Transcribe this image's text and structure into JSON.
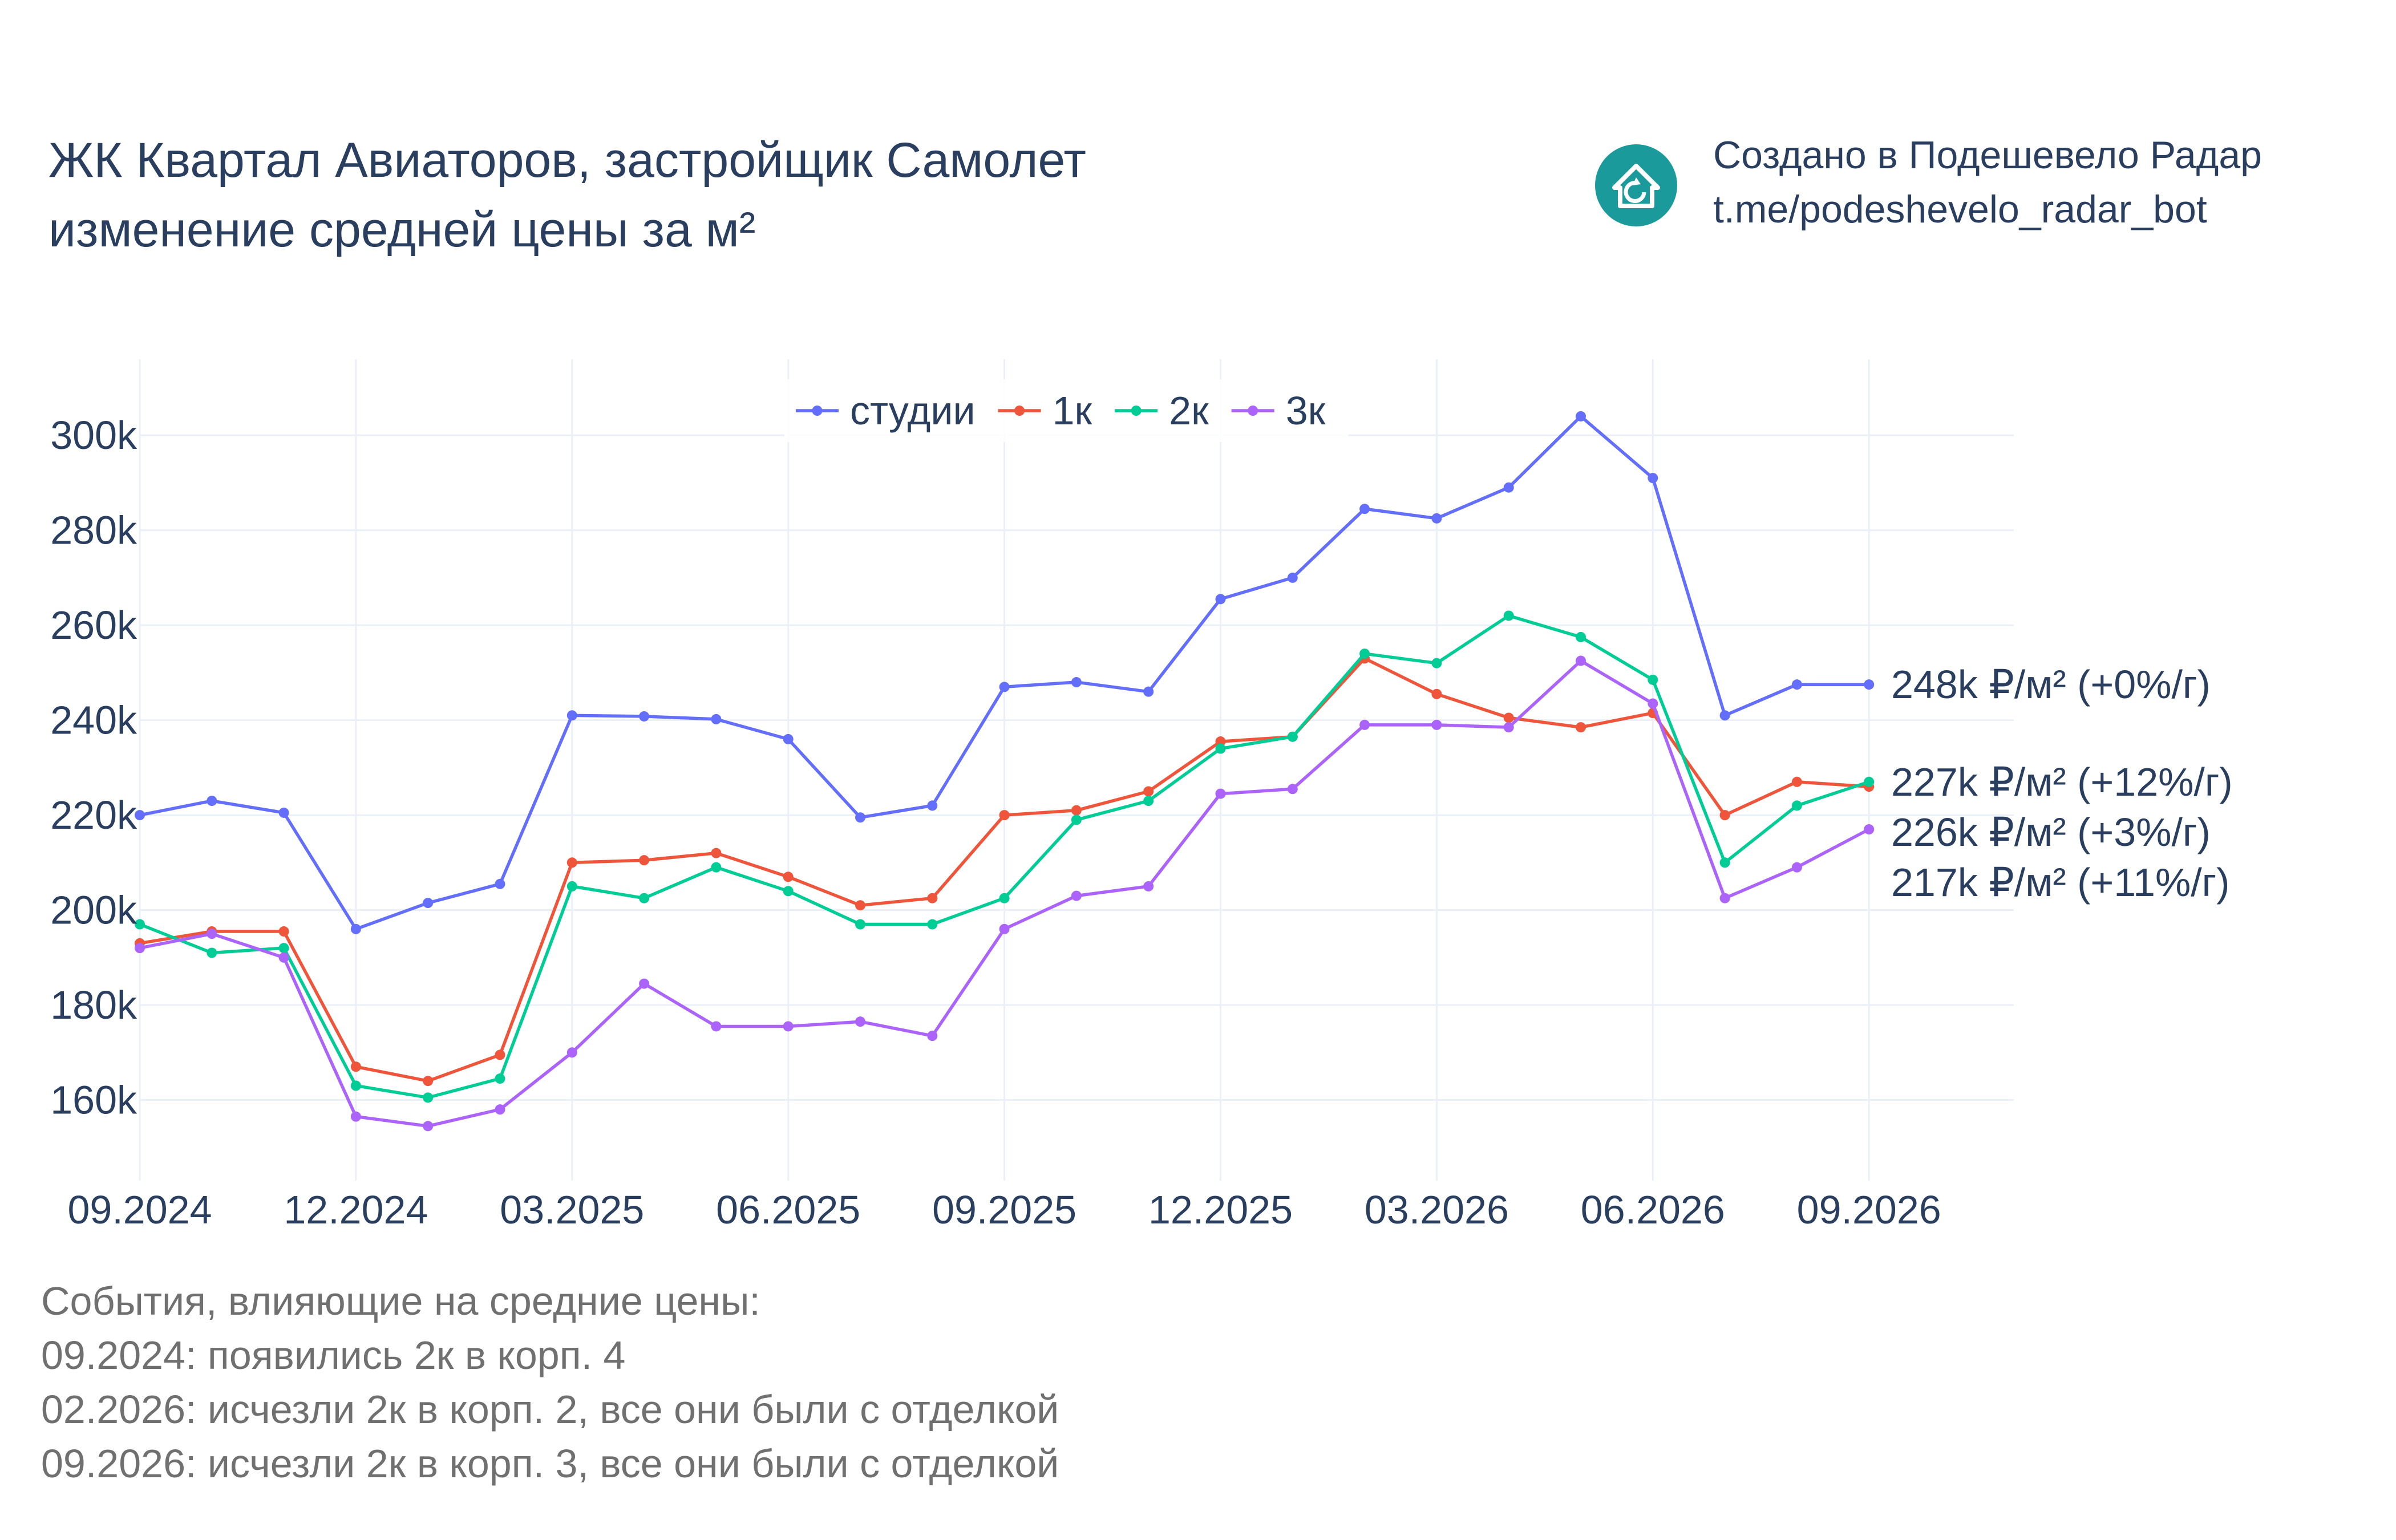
{
  "header": {
    "title_line1": "ЖК Квартал Авиаторов, застройщик Самолет",
    "title_line2": "изменение средней цены за м²"
  },
  "credit": {
    "logo_icon": "house-refresh-icon",
    "logo_color": "#1a9a9a",
    "line1": "Создано в Подешевело Радар",
    "line2": "t.me/podeshevelo_radar_bot"
  },
  "events": {
    "heading": "События, влияющие на средние цены:",
    "items": [
      "09.2024: появились 2к в корп. 4",
      "02.2026: исчезли 2к в корп. 2, все они были с отделкой",
      "09.2026: исчезли 2к в корп. 3, все они были с отделкой"
    ]
  },
  "chart_data": {
    "type": "line",
    "x": [
      "2024-09",
      "2024-10",
      "2024-11",
      "2024-12",
      "2025-01",
      "2025-02",
      "2025-03",
      "2025-04",
      "2025-05",
      "2025-06",
      "2025-07",
      "2025-08",
      "2025-09",
      "2025-10",
      "2025-11",
      "2025-12",
      "2026-01",
      "2026-02",
      "2026-03",
      "2026-04",
      "2026-05",
      "2026-06",
      "2026-07",
      "2026-08",
      "2026-09"
    ],
    "x_ticks": [
      "09.2024",
      "12.2024",
      "03.2025",
      "06.2025",
      "09.2025",
      "12.2025",
      "03.2026",
      "06.2026",
      "09.2026"
    ],
    "x_tick_dates": [
      "2024-09",
      "2024-12",
      "2025-03",
      "2025-06",
      "2025-09",
      "2025-12",
      "2026-03",
      "2026-06",
      "2026-09"
    ],
    "y_ticks": [
      160000,
      180000,
      200000,
      220000,
      240000,
      260000,
      280000,
      300000
    ],
    "y_tick_labels": [
      "160k",
      "180k",
      "200k",
      "220k",
      "240k",
      "260k",
      "280k",
      "300k"
    ],
    "ylim": [
      143000,
      316000
    ],
    "grid": true,
    "legend_position": "top-center",
    "series": [
      {
        "name": "студии",
        "color": "#636efa",
        "values": [
          220000,
          223000,
          220500,
          196000,
          201500,
          205500,
          241000,
          240800,
          240200,
          236000,
          219500,
          222000,
          247000,
          248000,
          246000,
          265500,
          270000,
          284500,
          282500,
          289000,
          304000,
          291000,
          241000,
          247500,
          247500
        ],
        "end_label": "248k ₽/м² (+0%/г)"
      },
      {
        "name": "1к",
        "color": "#ef553b",
        "values": [
          193000,
          195500,
          195500,
          167000,
          164000,
          169500,
          210000,
          210500,
          212000,
          207000,
          201000,
          202500,
          220000,
          221000,
          225000,
          235500,
          236500,
          253000,
          245500,
          240500,
          238500,
          241500,
          220000,
          227000,
          226000
        ],
        "end_label": "226k ₽/м² (+3%/г)"
      },
      {
        "name": "2к",
        "color": "#00cc96",
        "values": [
          197000,
          191000,
          192000,
          163000,
          160500,
          164500,
          205000,
          202500,
          209000,
          204000,
          197000,
          197000,
          202500,
          219000,
          223000,
          234000,
          236500,
          254000,
          252000,
          262000,
          257500,
          248500,
          210000,
          222000,
          227000
        ],
        "end_label": "227k ₽/м² (+12%/г)"
      },
      {
        "name": "3к",
        "color": "#ab63fa",
        "values": [
          192000,
          195000,
          190000,
          156500,
          154500,
          158000,
          170000,
          184500,
          175500,
          175500,
          176500,
          173500,
          196000,
          203000,
          205000,
          224500,
          225500,
          239000,
          239000,
          238500,
          252500,
          243500,
          202500,
          209000,
          217000
        ],
        "end_label": "217k ₽/м² (+11%/г)"
      }
    ]
  }
}
